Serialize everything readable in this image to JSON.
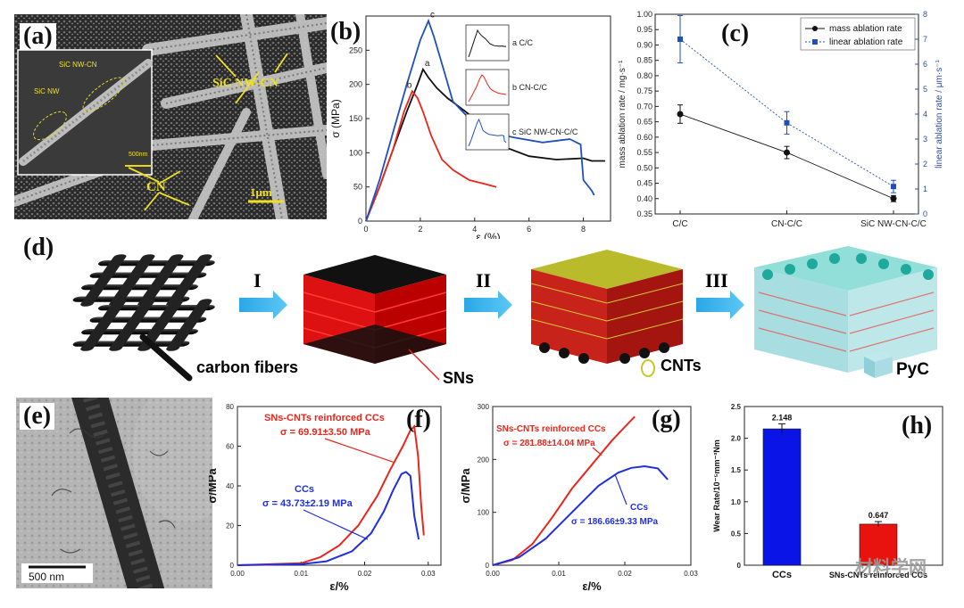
{
  "panels": {
    "a": {
      "label": "(a)",
      "annot_main": "SiC NW-CN",
      "annot_cn": "CN",
      "inset_nwcn": "SiC NW-CN",
      "inset_nw": "SiC NW",
      "inset_scale": "500nm",
      "scale": "1μm"
    },
    "b": {
      "label": "(b)"
    },
    "c": {
      "label": "(c)"
    },
    "d": {
      "label": "(d)",
      "steps": [
        "I",
        "II",
        "III"
      ],
      "legend": {
        "carbon_fibers": "carbon fibers",
        "sns": "SNs",
        "cnts": "CNTs",
        "pyc": "PyC"
      }
    },
    "e": {
      "label": "(e)",
      "scale": "500 nm"
    },
    "f": {
      "label": "(f)"
    },
    "g": {
      "label": "(g)"
    },
    "h": {
      "label": "(h)"
    }
  },
  "watermark": "材料学网",
  "colors": {
    "red": "#e8261c",
    "blue": "#1f2fe0",
    "black": "#111111",
    "cyan": "#28b4e8",
    "darkblue": "#2c4fa3"
  },
  "chart_data": [
    {
      "id": "b",
      "type": "line",
      "ylabel": "σ (MPa)",
      "xlabel": "ε (%)",
      "xlim": [
        0,
        9
      ],
      "ylim": [
        0,
        300
      ],
      "xticks": [
        "0",
        "2",
        "4",
        "6",
        "8"
      ],
      "yticks": [
        "0",
        "50",
        "100",
        "150",
        "200",
        "250"
      ],
      "series": [
        {
          "name": "a C/C",
          "tag": "a",
          "color": "#111111",
          "x": [
            0,
            0.5,
            1,
            1.5,
            1.9,
            2.1,
            2.3,
            2.6,
            3.0,
            3.5,
            4.0,
            5.0,
            6.0,
            7.0,
            8.0,
            8.3,
            8.8
          ],
          "y": [
            0,
            50,
            105,
            160,
            200,
            222,
            210,
            195,
            180,
            165,
            150,
            110,
            95,
            90,
            92,
            88,
            88
          ]
        },
        {
          "name": "b CN-C/C",
          "tag": "b",
          "color": "#e8261c",
          "x": [
            0,
            0.5,
            1,
            1.4,
            1.7,
            1.9,
            2.1,
            2.4,
            2.8,
            3.2,
            3.8,
            4.3,
            4.8
          ],
          "y": [
            0,
            50,
            105,
            160,
            190,
            180,
            160,
            125,
            90,
            75,
            60,
            55,
            50
          ]
        },
        {
          "name": "c SiC NW-CN-C/C",
          "tag": "c",
          "color": "#1f4fbf",
          "x": [
            0,
            0.5,
            1,
            1.5,
            2.0,
            2.3,
            2.5,
            2.8,
            3.2,
            3.8,
            4.5,
            5.5,
            6.5,
            7.5,
            7.9,
            8.0,
            8.3,
            8.4
          ],
          "y": [
            0,
            60,
            130,
            200,
            265,
            293,
            270,
            230,
            175,
            150,
            130,
            122,
            115,
            120,
            112,
            60,
            45,
            38
          ]
        }
      ]
    },
    {
      "id": "c",
      "type": "line",
      "categories": [
        "C/C",
        "CN-C/C",
        "SiC NW-CN-C/C"
      ],
      "ylabel": "mass ablation rate / mg·s⁻¹",
      "y2label": "linear ablation rate / μm·s⁻¹",
      "ylim": [
        0.35,
        1.0
      ],
      "y2lim": [
        0,
        8
      ],
      "yticks": [
        "0.35",
        "0.40",
        "0.45",
        "0.50",
        "0.55",
        "0.60",
        "0.65",
        "0.70",
        "0.75",
        "0.80",
        "0.85",
        "0.90",
        "0.95",
        "1.00"
      ],
      "y2ticks": [
        "0",
        "1",
        "2",
        "3",
        "4",
        "5",
        "6",
        "7",
        "8"
      ],
      "series": [
        {
          "name": "mass ablation rate",
          "axis": "left",
          "color": "#111111",
          "values": [
            0.675,
            0.55,
            0.4
          ],
          "err": [
            0.03,
            0.02,
            0.01
          ]
        },
        {
          "name": "linear ablation rate",
          "axis": "right",
          "color": "#1f4fbf",
          "values": [
            7.0,
            3.65,
            1.1
          ],
          "err": [
            0.95,
            0.45,
            0.25
          ]
        }
      ]
    },
    {
      "id": "f",
      "type": "line",
      "xlabel": "ε/%",
      "ylabel": "σ/MPa",
      "xlim": [
        0,
        0.032
      ],
      "ylim": [
        0,
        80
      ],
      "xticks": [
        "0.00",
        "0.01",
        "0.02",
        "0.03"
      ],
      "yticks": [
        "0",
        "20",
        "40",
        "60",
        "80"
      ],
      "series": [
        {
          "name": "SNs-CNTs reinforced CCs",
          "annotation": "σ = 69.91±3.50 MPa",
          "color": "#e8261c",
          "x": [
            0,
            0.01,
            0.013,
            0.016,
            0.019,
            0.022,
            0.024,
            0.026,
            0.0272,
            0.0278,
            0.0284,
            0.0289,
            0.0293
          ],
          "y": [
            0,
            1,
            4,
            10,
            20,
            35,
            48,
            60,
            68,
            70,
            55,
            30,
            15
          ]
        },
        {
          "name": "CCs",
          "annotation": "σ = 43.73±2.19 MPa",
          "color": "#1f2fe0",
          "x": [
            0,
            0.01,
            0.014,
            0.018,
            0.021,
            0.023,
            0.0245,
            0.0258,
            0.0265,
            0.0272,
            0.0278,
            0.0285
          ],
          "y": [
            0,
            0.5,
            2,
            7,
            16,
            27,
            38,
            46,
            47,
            45,
            25,
            13
          ]
        }
      ]
    },
    {
      "id": "g",
      "type": "line",
      "xlabel": "ε/%",
      "ylabel": "σ/MPa",
      "xlim": [
        0,
        0.03
      ],
      "ylim": [
        0,
        300
      ],
      "xticks": [
        "0.00",
        "0.01",
        "0.02",
        "0.03"
      ],
      "yticks": [
        "0",
        "100",
        "200",
        "300"
      ],
      "series": [
        {
          "name": "SNs-CNTs reinforced CCs",
          "annotation": "σ = 281.88±14.04 MPa",
          "color": "#e8261c",
          "x": [
            0,
            0.003,
            0.006,
            0.009,
            0.012,
            0.015,
            0.018,
            0.0205,
            0.0215
          ],
          "y": [
            0,
            10,
            40,
            90,
            145,
            190,
            235,
            268,
            281
          ]
        },
        {
          "name": "CCs",
          "annotation": "σ = 186.66±9.33 MPa",
          "color": "#1f2fe0",
          "x": [
            0,
            0.004,
            0.008,
            0.012,
            0.016,
            0.019,
            0.021,
            0.023,
            0.025,
            0.0265
          ],
          "y": [
            0,
            15,
            50,
            100,
            150,
            175,
            184,
            187,
            183,
            162
          ]
        }
      ]
    },
    {
      "id": "h",
      "type": "bar",
      "ylabel": "Wear Rate/10⁻⁵mm⁻³Nm",
      "ylim": [
        0,
        2.5
      ],
      "yticks": [
        "0",
        "0.5",
        "1.0",
        "1.5",
        "2.0",
        "2.5"
      ],
      "categories": [
        "CCs",
        "SNs-CNTs reinforced CCs"
      ],
      "values": [
        2.148,
        0.647
      ],
      "value_labels": [
        "2.148",
        "0.647"
      ],
      "err": [
        0.08,
        0.04
      ],
      "colors": [
        "#0a14e6",
        "#e8130f"
      ]
    }
  ]
}
